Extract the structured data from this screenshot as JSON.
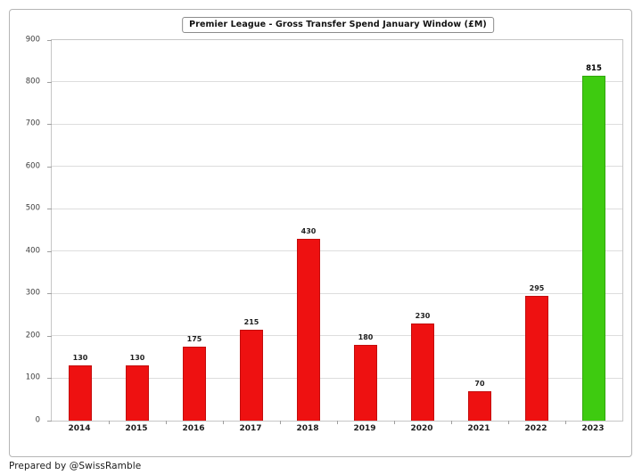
{
  "chart_data": {
    "type": "bar",
    "title": "Premier League - Gross Transfer Spend January Window (£M)",
    "categories": [
      "2014",
      "2015",
      "2016",
      "2017",
      "2018",
      "2019",
      "2020",
      "2021",
      "2022",
      "2023"
    ],
    "values": [
      130,
      130,
      175,
      215,
      430,
      180,
      230,
      70,
      295,
      815
    ],
    "xlabel": "",
    "ylabel": "",
    "ylim": [
      0,
      900
    ],
    "ytick_step": 100,
    "grid": "horizontal",
    "legend": "none",
    "bar_color_default": "#ee1111",
    "bar_color_highlight": "#3ecb10",
    "highlight_index": 9
  },
  "footer": {
    "credit": "Prepared by @SwissRamble"
  }
}
